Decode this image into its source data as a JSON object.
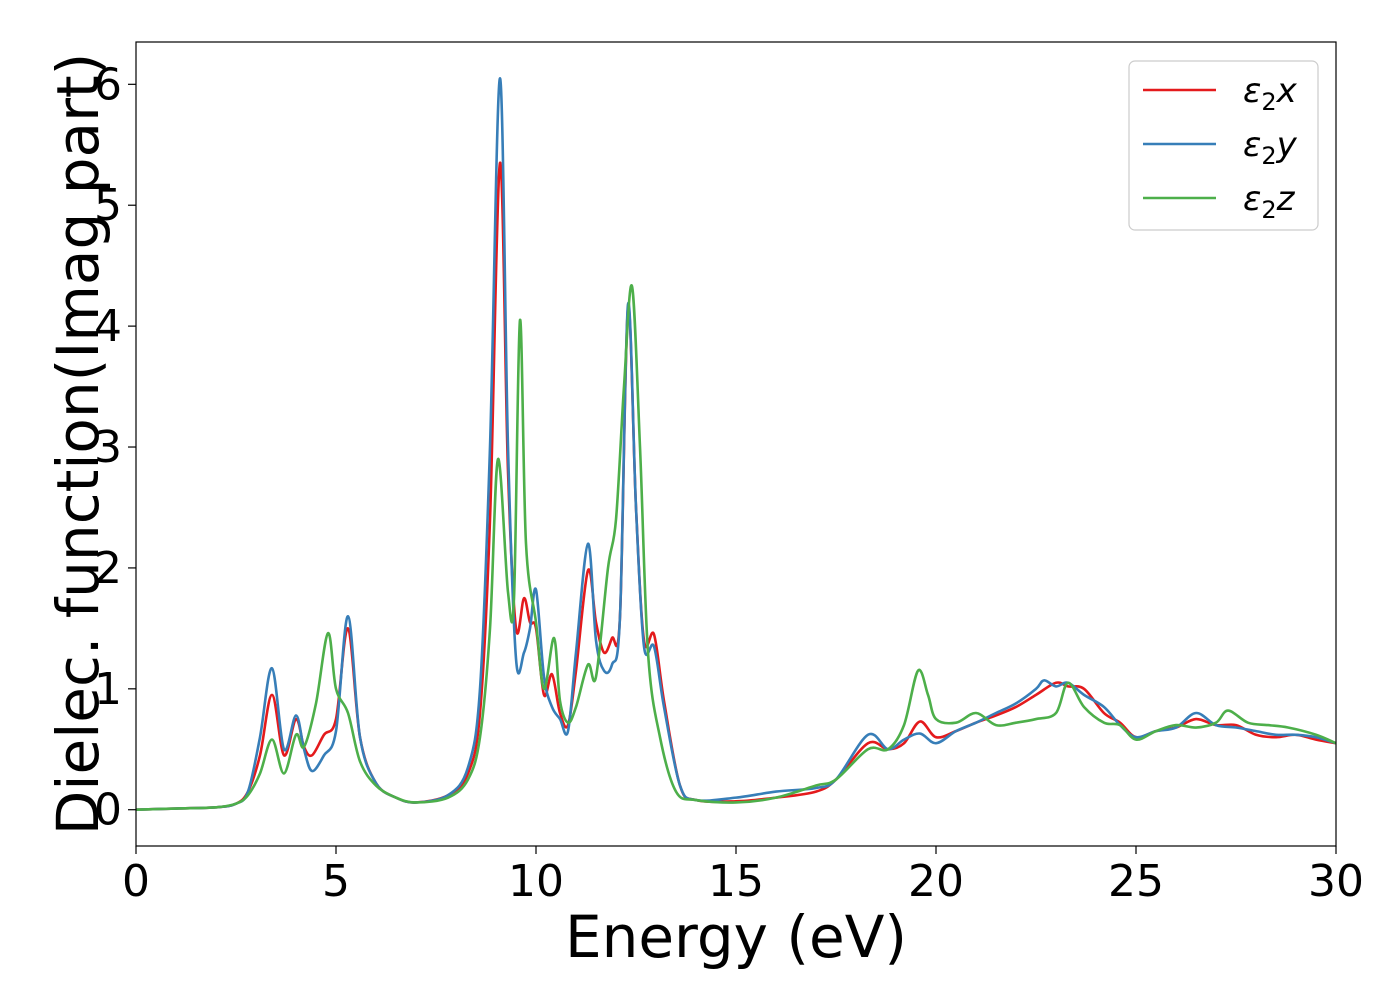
{
  "chart_data": {
    "type": "line",
    "xlabel": "Energy (eV)",
    "ylabel": "Dielec. function(Imag part)",
    "xlim": [
      0,
      30
    ],
    "ylim": [
      -0.3,
      6.35
    ],
    "xticks": [
      0,
      5,
      10,
      15,
      20,
      25,
      30
    ],
    "yticks": [
      0,
      1,
      2,
      3,
      4,
      5,
      6
    ],
    "grid": false,
    "legend_position": "top-right",
    "series": [
      {
        "name": "ε2x",
        "legend_base": "ε",
        "legend_sub": "2",
        "legend_var": "x",
        "color": "#e41a1c",
        "x": [
          0,
          1,
          2,
          2.5,
          2.8,
          3.1,
          3.4,
          3.7,
          4.0,
          4.2,
          4.4,
          4.7,
          5.0,
          5.3,
          5.6,
          6.0,
          6.5,
          7.0,
          7.8,
          8.3,
          8.6,
          8.85,
          9.1,
          9.3,
          9.5,
          9.7,
          9.85,
          10.0,
          10.2,
          10.4,
          10.6,
          10.8,
          11.0,
          11.3,
          11.5,
          11.7,
          11.9,
          12.1,
          12.3,
          12.5,
          12.7,
          12.95,
          13.2,
          13.6,
          14.0,
          15.0,
          16.0,
          17.0,
          17.5,
          18.3,
          18.8,
          19.2,
          19.6,
          20.0,
          20.5,
          21.0,
          21.5,
          22.0,
          22.5,
          23.0,
          23.3,
          23.7,
          24.2,
          24.6,
          25.0,
          25.5,
          26.0,
          26.5,
          27.0,
          27.5,
          28.0,
          28.5,
          29.0,
          29.5,
          30.0
        ],
        "y": [
          0.0,
          0.01,
          0.02,
          0.05,
          0.15,
          0.45,
          0.95,
          0.45,
          0.75,
          0.52,
          0.45,
          0.62,
          0.75,
          1.5,
          0.6,
          0.22,
          0.1,
          0.06,
          0.12,
          0.3,
          0.8,
          2.4,
          5.35,
          2.8,
          1.5,
          1.75,
          1.55,
          1.5,
          0.95,
          1.12,
          0.8,
          0.7,
          1.15,
          1.98,
          1.55,
          1.3,
          1.42,
          1.6,
          4.15,
          2.5,
          1.4,
          1.45,
          0.9,
          0.2,
          0.08,
          0.07,
          0.1,
          0.15,
          0.25,
          0.55,
          0.5,
          0.55,
          0.73,
          0.6,
          0.65,
          0.72,
          0.78,
          0.85,
          0.95,
          1.05,
          1.02,
          1.0,
          0.8,
          0.72,
          0.6,
          0.65,
          0.68,
          0.75,
          0.7,
          0.7,
          0.62,
          0.6,
          0.62,
          0.58,
          0.55
        ]
      },
      {
        "name": "ε2y",
        "legend_base": "ε",
        "legend_sub": "2",
        "legend_var": "y",
        "color": "#377eb8",
        "x": [
          0,
          1,
          2,
          2.5,
          2.8,
          3.1,
          3.4,
          3.7,
          4.0,
          4.2,
          4.4,
          4.7,
          5.0,
          5.3,
          5.6,
          6.0,
          6.5,
          7.0,
          7.8,
          8.3,
          8.6,
          8.85,
          9.1,
          9.3,
          9.5,
          9.7,
          9.85,
          10.0,
          10.2,
          10.4,
          10.6,
          10.8,
          11.0,
          11.3,
          11.5,
          11.7,
          11.9,
          12.1,
          12.3,
          12.5,
          12.7,
          12.95,
          13.2,
          13.6,
          14.0,
          15.0,
          16.0,
          17.0,
          17.5,
          18.3,
          18.8,
          19.2,
          19.6,
          20.0,
          20.5,
          21.0,
          21.5,
          22.0,
          22.5,
          22.7,
          23.0,
          23.3,
          23.7,
          24.2,
          24.6,
          25.0,
          25.5,
          26.0,
          26.5,
          27.0,
          27.5,
          28.0,
          28.5,
          29.0,
          29.5,
          30.0
        ],
        "y": [
          0.0,
          0.01,
          0.02,
          0.05,
          0.15,
          0.6,
          1.17,
          0.5,
          0.78,
          0.5,
          0.32,
          0.45,
          0.65,
          1.6,
          0.6,
          0.22,
          0.1,
          0.06,
          0.12,
          0.35,
          1.0,
          3.0,
          6.05,
          3.0,
          1.25,
          1.3,
          1.5,
          1.82,
          1.1,
          0.85,
          0.75,
          0.65,
          1.3,
          2.2,
          1.4,
          1.15,
          1.2,
          1.6,
          4.18,
          2.5,
          1.35,
          1.35,
          0.85,
          0.2,
          0.08,
          0.1,
          0.15,
          0.18,
          0.25,
          0.62,
          0.5,
          0.58,
          0.63,
          0.55,
          0.65,
          0.72,
          0.8,
          0.88,
          1.0,
          1.07,
          1.02,
          1.05,
          0.95,
          0.85,
          0.7,
          0.6,
          0.65,
          0.68,
          0.8,
          0.7,
          0.68,
          0.65,
          0.62,
          0.62,
          0.6,
          0.55
        ]
      },
      {
        "name": "ε2z",
        "legend_base": "ε",
        "legend_sub": "2",
        "legend_var": "z",
        "color": "#4daf4a",
        "x": [
          0,
          1,
          2,
          2.5,
          2.8,
          3.1,
          3.4,
          3.7,
          4.0,
          4.2,
          4.5,
          4.8,
          5.0,
          5.3,
          5.6,
          6.0,
          6.5,
          7.0,
          7.8,
          8.3,
          8.6,
          8.85,
          9.05,
          9.3,
          9.45,
          9.6,
          9.75,
          10.0,
          10.2,
          10.45,
          10.6,
          10.8,
          11.0,
          11.3,
          11.5,
          11.8,
          12.0,
          12.2,
          12.4,
          12.6,
          12.8,
          13.1,
          13.5,
          14.0,
          15.0,
          16.0,
          17.0,
          17.5,
          18.3,
          18.8,
          19.2,
          19.55,
          19.8,
          20.0,
          20.5,
          21.0,
          21.5,
          22.0,
          22.5,
          23.0,
          23.3,
          23.7,
          24.2,
          24.6,
          25.0,
          25.5,
          26.0,
          26.5,
          27.0,
          27.3,
          27.8,
          28.3,
          28.8,
          29.5,
          30.0
        ],
        "y": [
          0.0,
          0.01,
          0.02,
          0.05,
          0.12,
          0.3,
          0.58,
          0.3,
          0.62,
          0.52,
          0.88,
          1.46,
          1.0,
          0.8,
          0.4,
          0.2,
          0.1,
          0.06,
          0.1,
          0.25,
          0.6,
          1.5,
          2.9,
          1.8,
          1.75,
          4.05,
          2.2,
          1.55,
          1.0,
          1.42,
          0.9,
          0.72,
          0.85,
          1.2,
          1.1,
          2.0,
          2.4,
          3.5,
          4.33,
          3.0,
          1.3,
          0.6,
          0.15,
          0.08,
          0.06,
          0.1,
          0.2,
          0.25,
          0.5,
          0.5,
          0.7,
          1.15,
          0.95,
          0.75,
          0.72,
          0.8,
          0.7,
          0.72,
          0.75,
          0.8,
          1.05,
          0.85,
          0.72,
          0.7,
          0.58,
          0.65,
          0.7,
          0.68,
          0.72,
          0.82,
          0.72,
          0.7,
          0.68,
          0.62,
          0.55
        ]
      }
    ]
  }
}
